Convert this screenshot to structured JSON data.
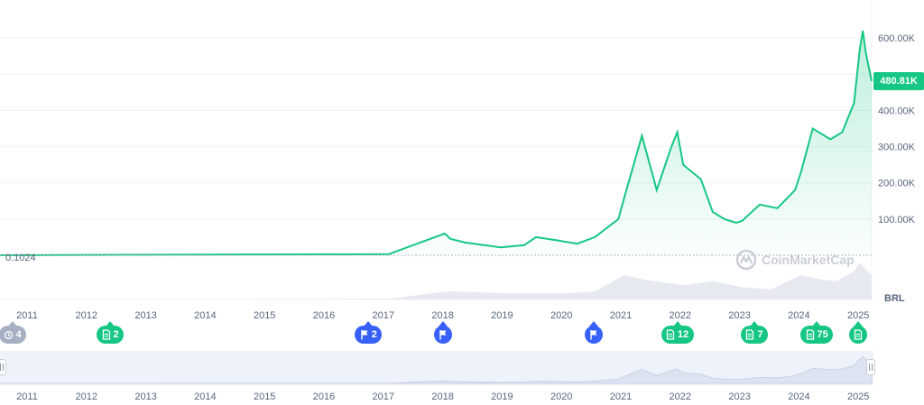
{
  "chart_data": {
    "type": "area",
    "title": "",
    "currency_label": "BRL",
    "current_price_label": "480.81K",
    "start_price_label": "0.1024",
    "y_ticks": [
      "100.00K",
      "200.00K",
      "300.00K",
      "400.00K",
      "600.00K"
    ],
    "y_tick_values": [
      100000,
      200000,
      300000,
      400000,
      600000
    ],
    "ylim": [
      0,
      700000
    ],
    "x_ticks": [
      "2011",
      "2012",
      "2013",
      "2014",
      "2015",
      "2016",
      "2017",
      "2018",
      "2019",
      "2020",
      "2021",
      "2022",
      "2023",
      "2024",
      "2025"
    ],
    "series": [
      {
        "x": [
          2010.4,
          2013.9,
          2017.0,
          2017.95,
          2018.05,
          2018.3,
          2018.9,
          2019.3,
          2019.5,
          2019.9,
          2020.2,
          2020.5,
          2020.9,
          2021.0,
          2021.3,
          2021.55,
          2021.8,
          2021.9,
          2022.0,
          2022.3,
          2022.5,
          2022.7,
          2022.9,
          2023.0,
          2023.3,
          2023.6,
          2023.9,
          2024.0,
          2024.2,
          2024.5,
          2024.7,
          2024.9,
          2025.0,
          2025.05,
          2025.1,
          2025.2
        ],
        "y": [
          0.1024,
          2000,
          3000,
          60000,
          45000,
          35000,
          22000,
          28000,
          50000,
          40000,
          32000,
          50000,
          100000,
          160000,
          330000,
          180000,
          300000,
          340000,
          250000,
          210000,
          120000,
          100000,
          90000,
          95000,
          140000,
          130000,
          180000,
          230000,
          350000,
          320000,
          340000,
          420000,
          570000,
          620000,
          560000,
          480810
        ]
      }
    ],
    "volume": {
      "x": [
        2010.4,
        2017.0,
        2018.0,
        2019.0,
        2020.0,
        2020.5,
        2021.0,
        2021.3,
        2022.0,
        2022.5,
        2023.0,
        2023.5,
        2024.0,
        2024.3,
        2024.6,
        2024.9,
        2025.0,
        2025.2
      ],
      "y": [
        0,
        0.02,
        0.2,
        0.15,
        0.15,
        0.2,
        0.6,
        0.5,
        0.35,
        0.45,
        0.3,
        0.25,
        0.6,
        0.5,
        0.45,
        0.7,
        0.9,
        0.6
      ]
    },
    "markers": [
      {
        "kind": "history",
        "label": "4",
        "year": 2010.75,
        "color": "#a6b0c3"
      },
      {
        "kind": "news",
        "label": "2",
        "year": 2012.4,
        "color": "#16c784"
      },
      {
        "kind": "flag",
        "label": "2",
        "year": 2016.75,
        "color": "#3861fb"
      },
      {
        "kind": "flag",
        "label": "",
        "year": 2018.0,
        "color": "#3861fb"
      },
      {
        "kind": "flag",
        "label": "",
        "year": 2020.55,
        "color": "#3861fb"
      },
      {
        "kind": "news",
        "label": "12",
        "year": 2021.95,
        "color": "#16c784"
      },
      {
        "kind": "news",
        "label": "7",
        "year": 2023.25,
        "color": "#16c784"
      },
      {
        "kind": "news",
        "label": "75",
        "year": 2024.3,
        "color": "#16c784"
      },
      {
        "kind": "news",
        "label": "",
        "year": 2025.0,
        "color": "#16c784"
      }
    ],
    "colors": {
      "line": "#16c784",
      "fill": "#16c784",
      "navigator": "#eef2fb",
      "marker_green": "#16c784",
      "marker_blue": "#3861fb",
      "marker_gray": "#a6b0c3"
    },
    "watermark": "CoinMarketCap",
    "grid": true
  }
}
